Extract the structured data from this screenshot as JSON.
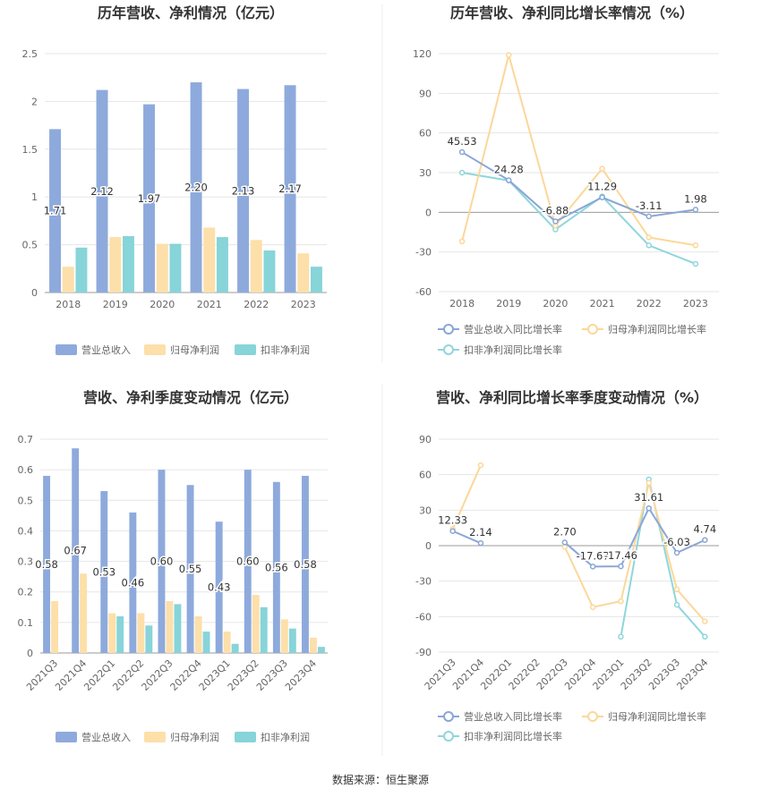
{
  "colors": {
    "revenue": "#8eaadc",
    "net_profit": "#fddfaa",
    "deducted_profit": "#87d4d9",
    "revenue_line": "#8aa6d6",
    "net_profit_line": "#fcd79a",
    "deducted_line": "#8fd6db"
  },
  "source_text": "数据来源：恒生聚源",
  "chart_data": [
    {
      "type": "bar",
      "title": "历年营收、净利情况（亿元）",
      "categories": [
        "2018",
        "2019",
        "2020",
        "2021",
        "2022",
        "2023"
      ],
      "ylim": [
        0,
        2.5
      ],
      "yticks": [
        0,
        0.5,
        1,
        1.5,
        2,
        2.5
      ],
      "ytick_labels": [
        "0",
        "0.5",
        "1",
        "1.5",
        "2",
        "2.5"
      ],
      "grid": true,
      "legend_position": "bottom",
      "series": [
        {
          "name": "营业总收入",
          "values": [
            1.71,
            2.12,
            1.97,
            2.2,
            2.13,
            2.17
          ],
          "labels": [
            "1.71",
            "2.12",
            "1.97",
            "2.20",
            "2.13",
            "2.17"
          ]
        },
        {
          "name": "归母净利润",
          "values": [
            0.27,
            0.58,
            0.51,
            0.68,
            0.55,
            0.41
          ]
        },
        {
          "name": "扣非净利润",
          "values": [
            0.47,
            0.59,
            0.51,
            0.58,
            0.44,
            0.27
          ]
        }
      ]
    },
    {
      "type": "line",
      "title": "历年营收、净利同比增长率情况（%）",
      "categories": [
        "2018",
        "2019",
        "2020",
        "2021",
        "2022",
        "2023"
      ],
      "ylim": [
        -60,
        120
      ],
      "yticks": [
        -60,
        -30,
        0,
        30,
        60,
        90,
        120
      ],
      "ytick_labels": [
        "-60",
        "-30",
        "0",
        "30",
        "60",
        "90",
        "120"
      ],
      "grid": true,
      "legend_position": "bottom",
      "series": [
        {
          "name": "营业总收入同比增长率",
          "values": [
            45.53,
            24.28,
            -6.88,
            11.29,
            -3.11,
            1.98
          ],
          "labels": [
            "45.53",
            "24.28",
            "-6.88",
            "11.29",
            "-3.11",
            "1.98"
          ]
        },
        {
          "name": "归母净利润同比增长率",
          "values": [
            -22,
            119,
            -10,
            33,
            -19,
            -25
          ]
        },
        {
          "name": "扣非净利润同比增长率",
          "values": [
            30,
            24,
            -13,
            12,
            -25,
            -39
          ]
        }
      ]
    },
    {
      "type": "bar",
      "title": "营收、净利季度变动情况（亿元）",
      "categories": [
        "2021Q3",
        "2021Q4",
        "2022Q1",
        "2022Q2",
        "2022Q3",
        "2022Q4",
        "2023Q1",
        "2023Q2",
        "2023Q3",
        "2023Q4"
      ],
      "ylim": [
        0,
        0.7
      ],
      "yticks": [
        0,
        0.1,
        0.2,
        0.3,
        0.4,
        0.5,
        0.6,
        0.7
      ],
      "ytick_labels": [
        "0",
        "0.1",
        "0.2",
        "0.3",
        "0.4",
        "0.5",
        "0.6",
        "0.7"
      ],
      "grid": true,
      "legend_position": "bottom",
      "series": [
        {
          "name": "营业总收入",
          "values": [
            0.58,
            0.67,
            0.53,
            0.46,
            0.6,
            0.55,
            0.43,
            0.6,
            0.56,
            0.58
          ],
          "labels": [
            "0.58",
            "0.67",
            "0.53",
            "0.46",
            "0.60",
            "0.55",
            "0.43",
            "0.60",
            "0.56",
            "0.58"
          ]
        },
        {
          "name": "归母净利润",
          "values": [
            0.17,
            0.26,
            0.13,
            0.13,
            0.17,
            0.12,
            0.07,
            0.19,
            0.11,
            0.05
          ]
        },
        {
          "name": "扣非净利润",
          "values": [
            null,
            null,
            0.12,
            0.09,
            0.16,
            0.07,
            0.03,
            0.15,
            0.08,
            0.02
          ]
        }
      ]
    },
    {
      "type": "line",
      "title": "营收、净利同比增长率季度变动情况（%）",
      "categories": [
        "2021Q3",
        "2021Q4",
        "2022Q1",
        "2022Q2",
        "2022Q3",
        "2022Q4",
        "2023Q1",
        "2023Q2",
        "2023Q3",
        "2023Q4"
      ],
      "ylim": [
        -90,
        90
      ],
      "yticks": [
        -90,
        -60,
        -30,
        0,
        30,
        60,
        90
      ],
      "ytick_labels": [
        "-90",
        "-60",
        "-30",
        "0",
        "30",
        "60",
        "90"
      ],
      "grid": true,
      "legend_position": "bottom",
      "series": [
        {
          "name": "营业总收入同比增长率",
          "values": [
            12.33,
            2.14,
            null,
            null,
            2.7,
            -17.67,
            -17.46,
            31.61,
            -6.03,
            4.74
          ],
          "labels": [
            "12.33",
            "2.14",
            null,
            null,
            "2.70",
            "-17.67",
            "-17.46",
            "31.61",
            "-6.03",
            "4.74"
          ]
        },
        {
          "name": "归母净利润同比增长率",
          "values": [
            14,
            68,
            null,
            null,
            -1,
            -52,
            -47,
            53,
            -37,
            -64
          ]
        },
        {
          "name": "扣非净利润同比增长率",
          "values": [
            null,
            null,
            null,
            null,
            null,
            null,
            -77,
            56,
            -50,
            -77
          ]
        }
      ]
    }
  ]
}
